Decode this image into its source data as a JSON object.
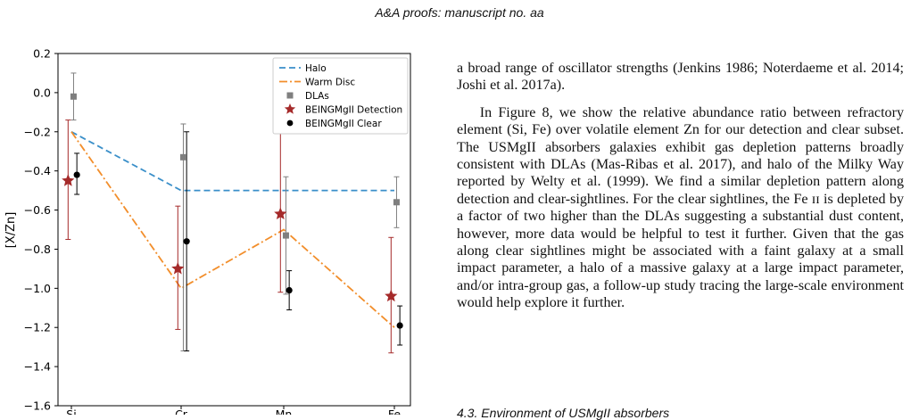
{
  "page": {
    "running_head": "A&A proofs: manuscript no. aa",
    "para1": "a broad range of oscillator strengths (Jenkins 1986; Noterdaeme et al. 2014; Joshi et al. 2017a).",
    "para2": "In Figure 8, we show the relative abundance ratio between refractory element (Si, Fe) over volatile element Zn for our detection and clear subset. The USMgII absorbers galaxies exhibit gas depletion patterns broadly consistent with DLAs (Mas-Ribas et al. 2017), and halo of the Milky Way reported by Welty et al. (1999). We find a similar depletion pattern along detection and clear-sightlines. For the clear sightlines, the Fe ɪɪ is depleted by a factor of two higher than the DLAs suggesting a substantial dust content, however, more data would be helpful to test it further. Given that the gas along clear sightlines might be associated with a faint galaxy at a small impact parameter, a halo of a massive galaxy at a large impact parameter, and/or intra-group gas, a follow-up study tracing the large-scale environment would help explore it further.",
    "section_heading": "4.3. Environment of USMgII absorbers"
  },
  "chart_data": {
    "type": "scatter",
    "categories": [
      "Si",
      "Cr",
      "Mn",
      "Fe"
    ],
    "ylabel": "[X/Zn]",
    "xlabel": "",
    "ylim": [
      -1.6,
      0.2
    ],
    "yticks": [
      -1.6,
      -1.4,
      -1.2,
      -1.0,
      -0.8,
      -0.6,
      -0.4,
      -0.2,
      0.0,
      0.2
    ],
    "ytick_labels": [
      "−1.6",
      "−1.4",
      "−1.2",
      "−1.0",
      "−0.8",
      "−0.6",
      "−0.4",
      "−0.2",
      "0.0",
      "0.2"
    ],
    "legend_position": "top-right",
    "grid": false,
    "series": [
      {
        "name": "Halo",
        "kind": "line",
        "style": "dashed",
        "color": "#3a8fc9",
        "values": [
          -0.2,
          -0.5,
          -0.5,
          -0.5
        ]
      },
      {
        "name": "Warm Disc",
        "kind": "line",
        "style": "dashdot",
        "color": "#f28e2b",
        "values": [
          -0.2,
          -1.0,
          -0.7,
          -1.2
        ]
      },
      {
        "name": "DLAs",
        "kind": "scatter",
        "marker": "square",
        "color": "#7f7f7f",
        "offset": 0.02,
        "values": [
          -0.02,
          -0.33,
          -0.73,
          -0.56
        ],
        "err_low": [
          0.12,
          0.99,
          0.3,
          0.13
        ],
        "err_high": [
          0.12,
          0.17,
          0.3,
          0.13
        ]
      },
      {
        "name": "BEINGMgII Detection",
        "kind": "scatter",
        "marker": "star",
        "color": "#a52a2a",
        "offset": -0.03,
        "values": [
          -0.45,
          -0.9,
          -0.62,
          -1.04
        ],
        "err_low": [
          0.3,
          0.31,
          0.4,
          0.29
        ],
        "err_high": [
          0.31,
          0.32,
          0.41,
          0.3
        ]
      },
      {
        "name": "BEINGMgII Clear",
        "kind": "scatter",
        "marker": "circle",
        "color": "#000000",
        "offset": 0.05,
        "values": [
          -0.42,
          -0.76,
          -1.01,
          -1.19
        ],
        "err_low": [
          0.1,
          0.56,
          0.1,
          0.1
        ],
        "err_high": [
          0.11,
          0.56,
          0.1,
          0.1
        ]
      }
    ]
  }
}
